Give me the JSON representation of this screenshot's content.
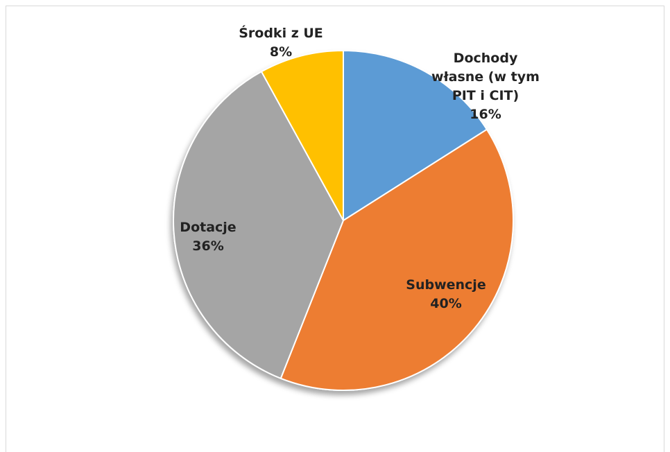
{
  "chart_data": {
    "type": "pie",
    "categories": [
      "Dochody własne (w tym PIT i CIT)",
      "Subwencje",
      "Dotacje",
      "Środki z UE"
    ],
    "values": [
      16,
      40,
      36,
      8
    ],
    "value_labels": [
      "16%",
      "40%",
      "36%",
      "8%"
    ],
    "colors": [
      "#5b9bd5",
      "#ed7d31",
      "#a5a5a5",
      "#ffc000"
    ]
  }
}
